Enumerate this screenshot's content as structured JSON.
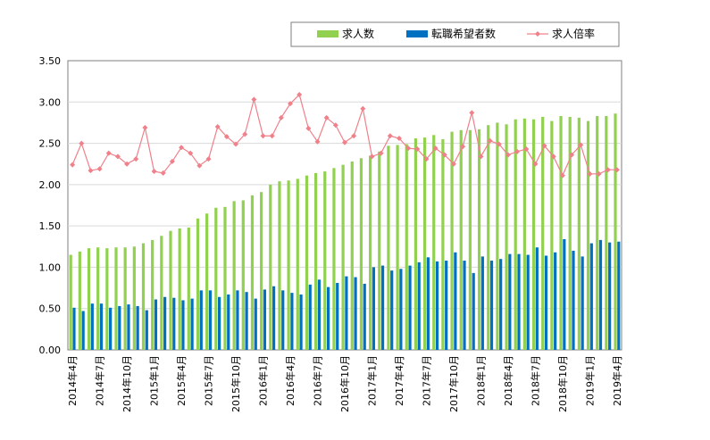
{
  "chart_data": {
    "type": "bar",
    "title": "",
    "xlabel": "",
    "ylabel": "",
    "ylim": [
      0,
      3.5
    ],
    "yticks": [
      "0.00",
      "0.50",
      "1.00",
      "1.50",
      "2.00",
      "2.50",
      "3.00",
      "3.50"
    ],
    "grid": "horizontal",
    "legend_position": "top-right",
    "x": [
      "2014年4月",
      "2014年5月",
      "2014年6月",
      "2014年7月",
      "2014年8月",
      "2014年9月",
      "2014年10月",
      "2014年11月",
      "2014年12月",
      "2015年1月",
      "2015年2月",
      "2015年3月",
      "2015年4月",
      "2015年5月",
      "2015年6月",
      "2015年7月",
      "2015年8月",
      "2015年9月",
      "2015年10月",
      "2015年11月",
      "2015年12月",
      "2016年1月",
      "2016年2月",
      "2016年3月",
      "2016年4月",
      "2016年5月",
      "2016年6月",
      "2016年7月",
      "2016年8月",
      "2016年9月",
      "2016年10月",
      "2016年11月",
      "2016年12月",
      "2017年1月",
      "2017年2月",
      "2017年3月",
      "2017年4月",
      "2017年5月",
      "2017年6月",
      "2017年7月",
      "2017年8月",
      "2017年9月",
      "2017年10月",
      "2017年11月",
      "2017年12月",
      "2018年1月",
      "2018年2月",
      "2018年3月",
      "2018年4月",
      "2018年5月",
      "2018年6月",
      "2018年7月",
      "2018年8月",
      "2018年9月",
      "2018年10月",
      "2018年11月",
      "2018年12月",
      "2019年1月",
      "2019年2月",
      "2019年3月",
      "2019年4月"
    ],
    "x_tick_labels": [
      "2014年4月",
      "2014年7月",
      "2014年10月",
      "2015年1月",
      "2015年4月",
      "2015年7月",
      "2015年10月",
      "2016年1月",
      "2016年4月",
      "2016年7月",
      "2016年10月",
      "2017年1月",
      "2017年4月",
      "2017年7月",
      "2017年10月",
      "2018年1月",
      "2018年4月",
      "2018年7月",
      "2018年10月",
      "2019年1月",
      "2019年4月"
    ],
    "series": [
      {
        "name": "求人数",
        "kind": "bar",
        "color": "#92d050",
        "values": [
          1.15,
          1.19,
          1.23,
          1.24,
          1.23,
          1.24,
          1.24,
          1.25,
          1.29,
          1.33,
          1.38,
          1.44,
          1.47,
          1.48,
          1.59,
          1.65,
          1.72,
          1.73,
          1.8,
          1.81,
          1.87,
          1.91,
          2.0,
          2.04,
          2.05,
          2.07,
          2.11,
          2.14,
          2.16,
          2.2,
          2.24,
          2.28,
          2.32,
          2.35,
          2.4,
          2.47,
          2.48,
          2.49,
          2.56,
          2.57,
          2.6,
          2.55,
          2.64,
          2.66,
          2.66,
          2.67,
          2.72,
          2.75,
          2.73,
          2.79,
          2.8,
          2.79,
          2.82,
          2.77,
          2.83,
          2.82,
          2.81,
          2.77,
          2.83,
          2.83,
          2.86
        ]
      },
      {
        "name": "転職希望者数",
        "kind": "bar",
        "color": "#0070c0",
        "values": [
          0.51,
          0.47,
          0.56,
          0.56,
          0.51,
          0.53,
          0.55,
          0.53,
          0.48,
          0.61,
          0.64,
          0.63,
          0.6,
          0.62,
          0.72,
          0.72,
          0.64,
          0.67,
          0.72,
          0.7,
          0.62,
          0.73,
          0.77,
          0.72,
          0.69,
          0.67,
          0.79,
          0.85,
          0.76,
          0.81,
          0.89,
          0.88,
          0.8,
          1.0,
          1.02,
          0.96,
          0.98,
          1.02,
          1.06,
          1.12,
          1.07,
          1.08,
          1.18,
          1.08,
          0.93,
          1.13,
          1.08,
          1.1,
          1.16,
          1.16,
          1.15,
          1.24,
          1.14,
          1.18,
          1.34,
          1.2,
          1.13,
          1.29,
          1.33,
          1.3,
          1.31
        ]
      },
      {
        "name": "求人倍率",
        "kind": "line",
        "color": "#f0808a",
        "values": [
          2.24,
          2.5,
          2.17,
          2.19,
          2.38,
          2.34,
          2.25,
          2.31,
          2.69,
          2.16,
          2.14,
          2.28,
          2.45,
          2.38,
          2.23,
          2.31,
          2.7,
          2.58,
          2.49,
          2.61,
          3.03,
          2.59,
          2.59,
          2.81,
          2.98,
          3.09,
          2.68,
          2.52,
          2.81,
          2.72,
          2.51,
          2.59,
          2.92,
          2.34,
          2.38,
          2.59,
          2.56,
          2.44,
          2.43,
          2.31,
          2.44,
          2.36,
          2.25,
          2.46,
          2.87,
          2.34,
          2.53,
          2.49,
          2.36,
          2.4,
          2.43,
          2.25,
          2.47,
          2.34,
          2.11,
          2.36,
          2.48,
          2.13,
          2.13,
          2.18,
          2.18
        ]
      }
    ]
  }
}
